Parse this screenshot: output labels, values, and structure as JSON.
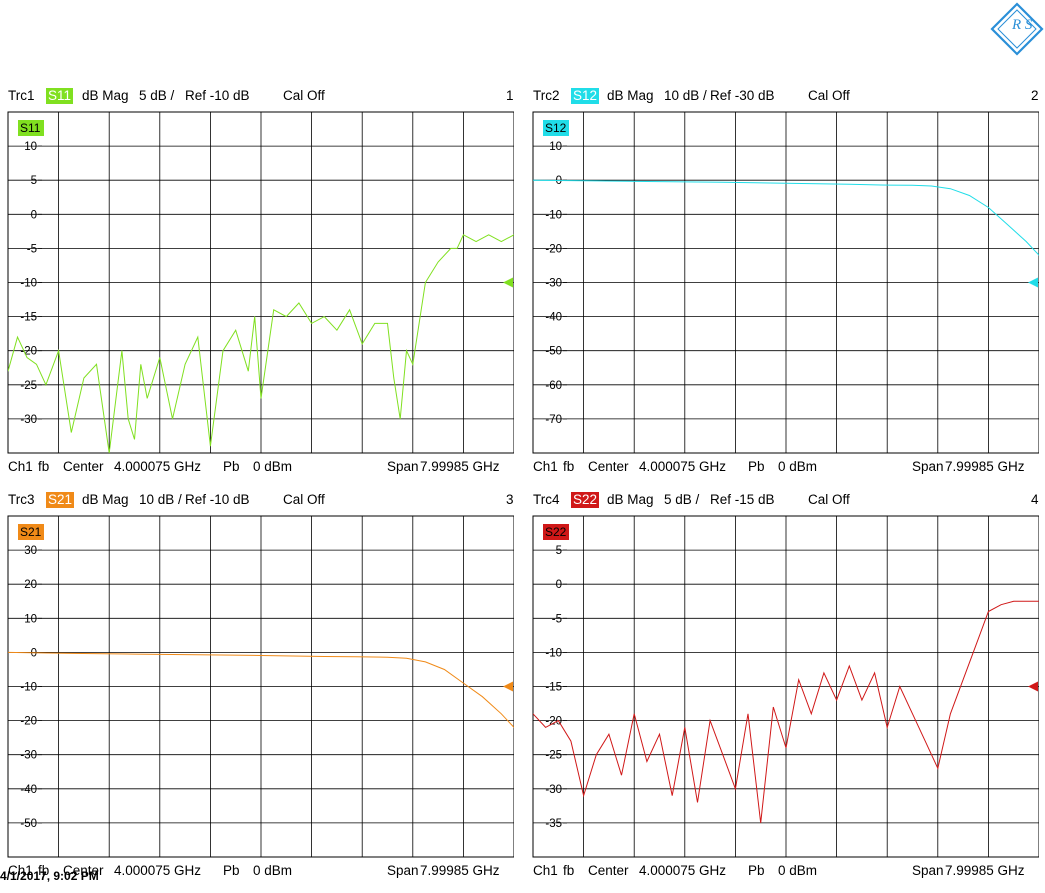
{
  "timestamp": "4/1/2017, 9:02 PM",
  "logo": {
    "text": "R S"
  },
  "panels": [
    {
      "trace": "Trc1",
      "param": "S11",
      "format": "dB Mag",
      "scale": "5 dB /",
      "ref": "Ref -10 dB",
      "cal": "Cal Off",
      "num": "1",
      "color": "#80e020",
      "footer": {
        "ch": "Ch1",
        "mode": "fb",
        "center": "Center",
        "center_val": "4.000075 GHz",
        "pb": "Pb",
        "power": "0 dBm",
        "span": "Span",
        "span_val": "7.99985 GHz"
      }
    },
    {
      "trace": "Trc2",
      "param": "S12",
      "format": "dB Mag",
      "scale": "10 dB /",
      "ref": "Ref -30 dB",
      "cal": "Cal Off",
      "num": "2",
      "color": "#20dde8",
      "footer": {
        "ch": "Ch1",
        "mode": "fb",
        "center": "Center",
        "center_val": "4.000075 GHz",
        "pb": "Pb",
        "power": "0 dBm",
        "span": "Span",
        "span_val": "7.99985 GHz"
      }
    },
    {
      "trace": "Trc3",
      "param": "S21",
      "format": "dB Mag",
      "scale": "10 dB /",
      "ref": "Ref -10 dB",
      "cal": "Cal Off",
      "num": "3",
      "color": "#f08a18",
      "footer": {
        "ch": "Ch1",
        "mode": "fb",
        "center": "Center",
        "center_val": "4.000075 GHz",
        "pb": "Pb",
        "power": "0 dBm",
        "span": "Span",
        "span_val": "7.99985 GHz"
      }
    },
    {
      "trace": "Trc4",
      "param": "S22",
      "format": "dB Mag",
      "scale": "5 dB /",
      "ref": "Ref -15 dB",
      "cal": "Cal Off",
      "num": "4",
      "color": "#d01818",
      "footer": {
        "ch": "Ch1",
        "mode": "fb",
        "center": "Center",
        "center_val": "4.000075 GHz",
        "pb": "Pb",
        "power": "0 dBm",
        "span": "Span",
        "span_val": "7.99985 GHz"
      }
    }
  ],
  "chart_data": [
    {
      "type": "line",
      "name": "S11",
      "xlim": [
        0.00015,
        7.999999
      ],
      "xunit": "GHz",
      "ylim": [
        -35,
        15
      ],
      "yticks": [
        10,
        5,
        0,
        -5,
        -10,
        -15,
        -20,
        -25,
        -30
      ],
      "ref_level": -10,
      "grid": true,
      "x": [
        0.0,
        0.15,
        0.3,
        0.45,
        0.6,
        0.8,
        1.0,
        1.2,
        1.4,
        1.6,
        1.8,
        1.9,
        2.0,
        2.1,
        2.2,
        2.4,
        2.6,
        2.8,
        3.0,
        3.2,
        3.4,
        3.6,
        3.8,
        3.9,
        4.0,
        4.2,
        4.4,
        4.6,
        4.8,
        5.0,
        5.2,
        5.4,
        5.6,
        5.8,
        6.0,
        6.1,
        6.2,
        6.3,
        6.4,
        6.5,
        6.6,
        6.8,
        7.0,
        7.1,
        7.2,
        7.4,
        7.6,
        7.8,
        8.0
      ],
      "values": [
        -23,
        -18,
        -21,
        -22,
        -25,
        -20,
        -32,
        -24,
        -22,
        -35,
        -20,
        -30,
        -33,
        -22,
        -27,
        -21,
        -30,
        -22,
        -18,
        -34,
        -20,
        -17,
        -23,
        -15,
        -27,
        -14,
        -15,
        -13,
        -16,
        -15,
        -17,
        -14,
        -19,
        -16,
        -16,
        -24,
        -30,
        -20,
        -22,
        -16,
        -10,
        -7,
        -5,
        -5,
        -3,
        -4,
        -3,
        -4,
        -3
      ]
    },
    {
      "type": "line",
      "name": "S12",
      "xlim": [
        0.00015,
        7.999999
      ],
      "xunit": "GHz",
      "ylim": [
        -80,
        20
      ],
      "yticks": [
        10,
        0,
        -10,
        -20,
        -30,
        -40,
        -50,
        -60,
        -70
      ],
      "ref_level": -30,
      "grid": true,
      "x": [
        0.0,
        1.0,
        2.0,
        3.0,
        4.0,
        5.0,
        5.5,
        6.0,
        6.3,
        6.6,
        6.9,
        7.2,
        7.5,
        7.8,
        8.0
      ],
      "values": [
        0,
        -0.2,
        -0.4,
        -0.6,
        -0.9,
        -1.2,
        -1.4,
        -1.5,
        -1.7,
        -2.5,
        -4.5,
        -8,
        -13,
        -18,
        -22
      ]
    },
    {
      "type": "line",
      "name": "S21",
      "xlim": [
        0.00015,
        7.999999
      ],
      "xunit": "GHz",
      "ylim": [
        -60,
        40
      ],
      "yticks": [
        30,
        20,
        10,
        0,
        -10,
        -20,
        -30,
        -40,
        -50
      ],
      "ref_level": -10,
      "grid": true,
      "x": [
        0.0,
        1.0,
        2.0,
        3.0,
        4.0,
        5.0,
        5.5,
        6.0,
        6.3,
        6.6,
        6.9,
        7.2,
        7.5,
        7.8,
        8.0
      ],
      "values": [
        0,
        -0.3,
        -0.5,
        -0.7,
        -0.9,
        -1.2,
        -1.3,
        -1.4,
        -1.7,
        -2.8,
        -5,
        -9,
        -13,
        -18,
        -22
      ]
    },
    {
      "type": "line",
      "name": "S22",
      "xlim": [
        0.00015,
        7.999999
      ],
      "xunit": "GHz",
      "ylim": [
        -40,
        10
      ],
      "yticks": [
        5,
        0,
        -5,
        -10,
        -15,
        -20,
        -25,
        -30,
        -35
      ],
      "ref_level": -15,
      "grid": true,
      "x": [
        0.0,
        0.2,
        0.4,
        0.6,
        0.8,
        1.0,
        1.2,
        1.4,
        1.6,
        1.8,
        2.0,
        2.2,
        2.4,
        2.6,
        2.8,
        3.0,
        3.2,
        3.4,
        3.6,
        3.8,
        4.0,
        4.2,
        4.4,
        4.6,
        4.8,
        5.0,
        5.2,
        5.4,
        5.6,
        5.8,
        6.0,
        6.2,
        6.4,
        6.6,
        6.8,
        7.0,
        7.2,
        7.4,
        7.6,
        7.8,
        8.0
      ],
      "values": [
        -19,
        -21,
        -20,
        -23,
        -31,
        -25,
        -22,
        -28,
        -19,
        -26,
        -22,
        -31,
        -21,
        -32,
        -20,
        -25,
        -30,
        -19,
        -35,
        -18,
        -24,
        -14,
        -19,
        -13,
        -17,
        -12,
        -17,
        -13,
        -21,
        -15,
        -19,
        -23,
        -27,
        -19,
        -14,
        -9,
        -4,
        -3,
        -2.5,
        -2.5,
        -2.5
      ]
    }
  ]
}
